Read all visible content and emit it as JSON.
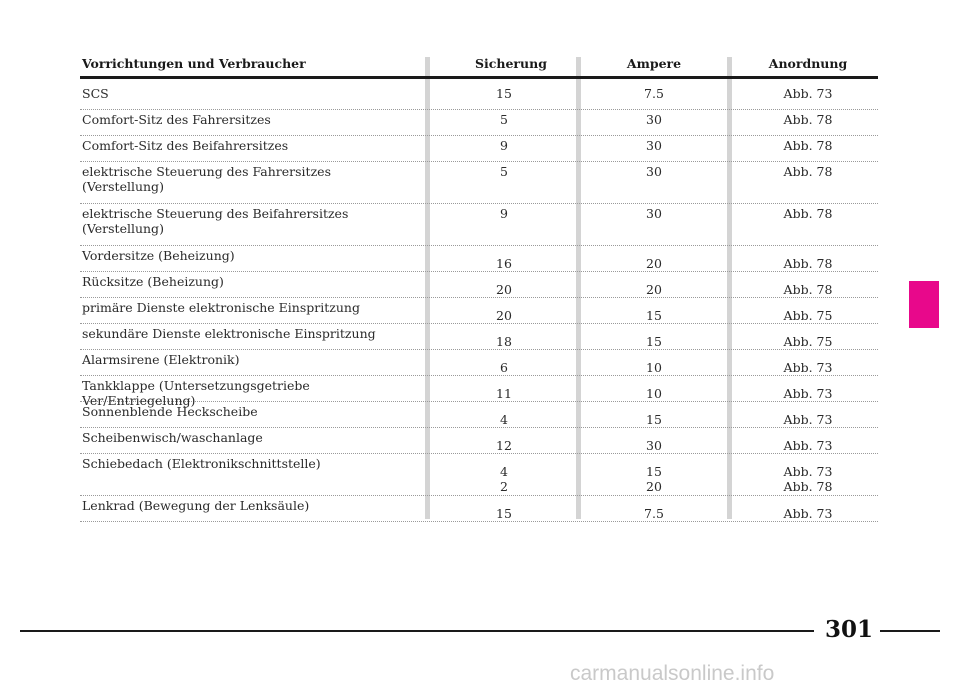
{
  "table": {
    "headers": {
      "device": "Vorrichtungen und Verbraucher",
      "fuse": "Sicherung",
      "ampere": "Ampere",
      "location": "Anordnung"
    },
    "rows": [
      {
        "device": "SCS",
        "fuse": "15",
        "ampere": "7.5",
        "location": "Abb. 73"
      },
      {
        "device": "Comfort-Sitz des Fahrersitzes",
        "fuse": "5",
        "ampere": "30",
        "location": "Abb. 78"
      },
      {
        "device": "Comfort-Sitz des Beifahrersitzes",
        "fuse": "9",
        "ampere": "30",
        "location": "Abb. 78"
      },
      {
        "device": "elektrische Steuerung des Fahrersitzes\n(Verstellung)",
        "fuse": "5",
        "ampere": "30",
        "location": "Abb. 78"
      },
      {
        "device": "elektrische Steuerung des Beifahrersitzes\n(Verstellung)",
        "fuse": "9",
        "ampere": "30",
        "location": "Abb. 78"
      },
      {
        "device": "Vordersitze (Beheizung)",
        "fuse": "16",
        "ampere": "20",
        "location": "Abb. 78"
      },
      {
        "device": "Rücksitze (Beheizung)",
        "fuse": "20",
        "ampere": "20",
        "location": "Abb. 78"
      },
      {
        "device": "primäre Dienste elektronische Einspritzung",
        "fuse": "20",
        "ampere": "15",
        "location": "Abb. 75"
      },
      {
        "device": "sekundäre Dienste elektronische Einspritzung",
        "fuse": "18",
        "ampere": "15",
        "location": "Abb. 75"
      },
      {
        "device": "Alarmsirene (Elektronik)",
        "fuse": "6",
        "ampere": "10",
        "location": "Abb. 73"
      },
      {
        "device": "Tankklappe (Untersetzungsgetriebe Ver/Entriegelung)",
        "fuse": "11",
        "ampere": "10",
        "location": "Abb. 73"
      },
      {
        "device": "Sonnenblende Heckscheibe",
        "fuse": "4",
        "ampere": "15",
        "location": "Abb. 73"
      },
      {
        "device": "Scheibenwisch/waschanlage",
        "fuse": "12",
        "ampere": "30",
        "location": "Abb. 73"
      },
      {
        "device": "Schiebedach (Elektronikschnittstelle)",
        "fuse": "4\n2",
        "ampere": "15\n20",
        "location": "Abb. 73\nAbb. 78"
      },
      {
        "device": "Lenkrad (Bewegung der Lenksäule)",
        "fuse": "15",
        "ampere": "7.5",
        "location": "Abb. 73"
      }
    ]
  },
  "page_number": "301",
  "watermark": "carmanualsonline.info",
  "colors": {
    "section_tab": "#e8088b",
    "column_separator": "#d4d4d4",
    "rule": "#1a1a1a"
  }
}
